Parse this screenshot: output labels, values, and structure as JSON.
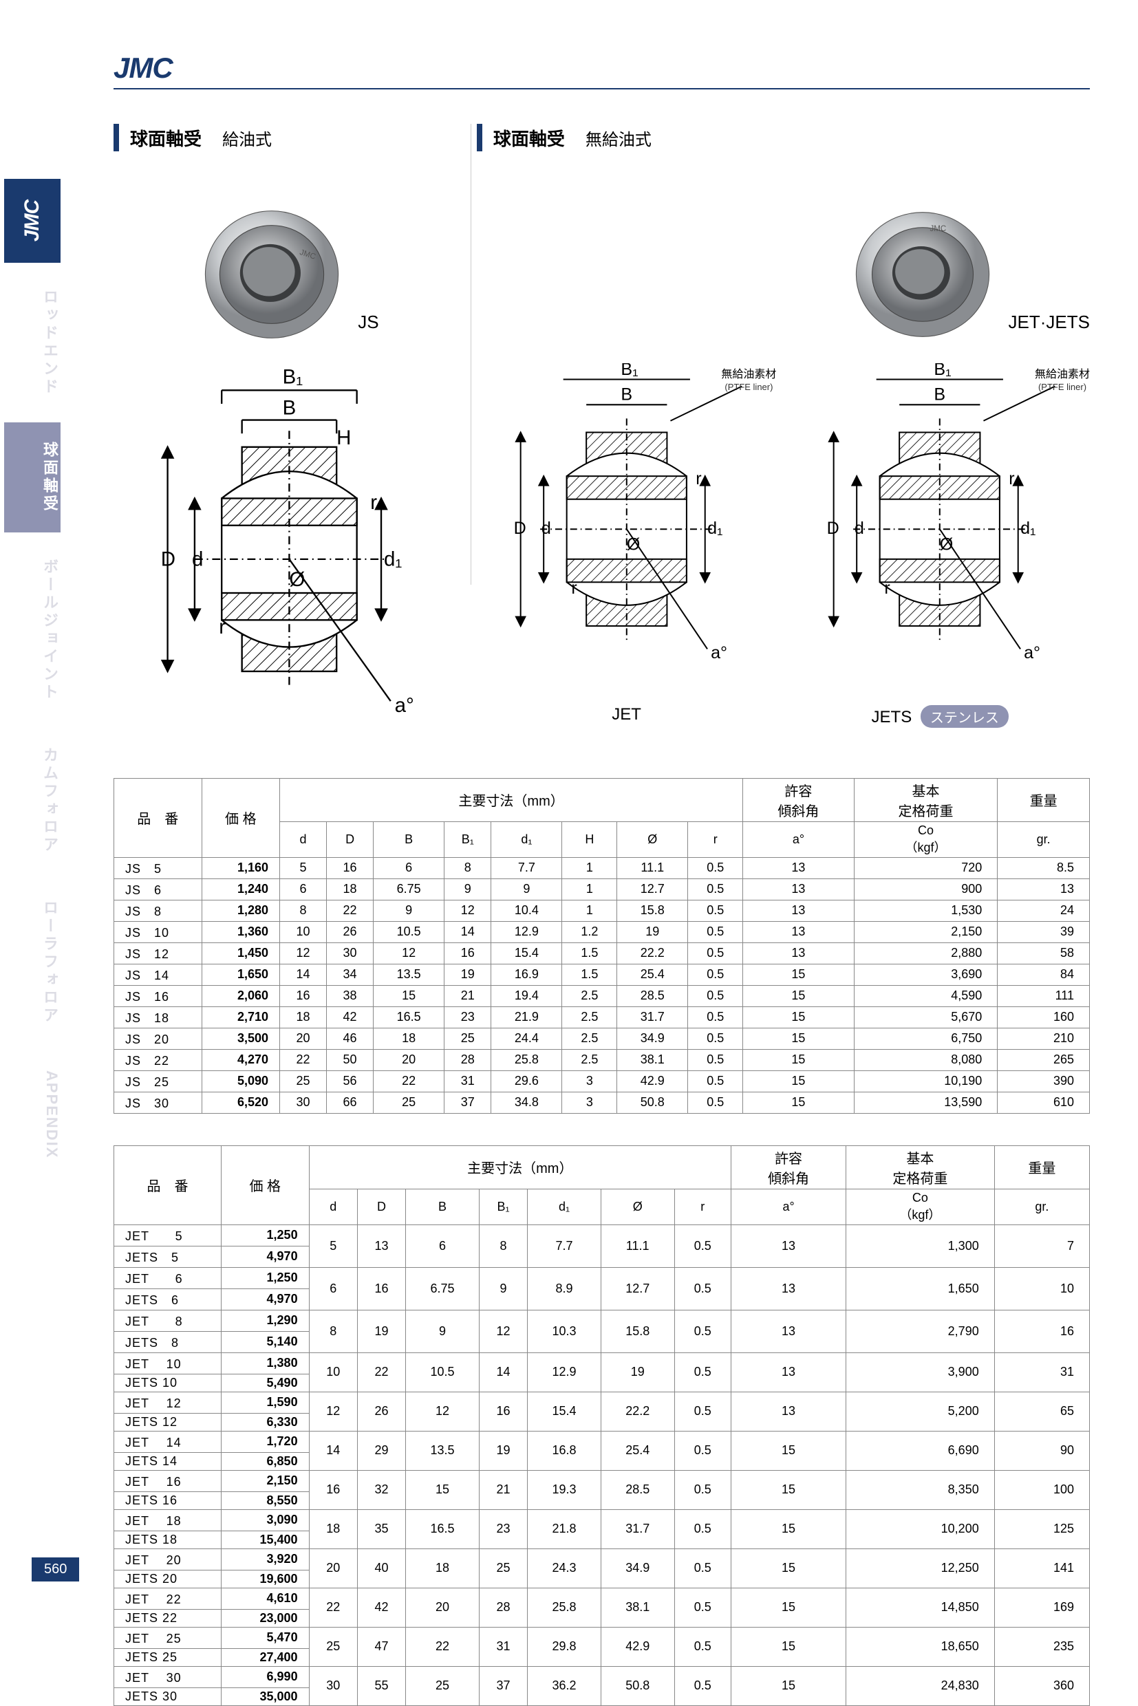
{
  "brand": "JMC",
  "page_number": "560",
  "sidebar": {
    "tabs": [
      {
        "label": "JMC",
        "key": "jmc",
        "active": false
      },
      {
        "label": "ロッドエンド",
        "key": "rod-end",
        "active": false
      },
      {
        "label": "球面軸受",
        "key": "spherical",
        "active": true
      },
      {
        "label": "ボールジョイント",
        "key": "ball-joint",
        "active": false
      },
      {
        "label": "カムフォロア",
        "key": "cam-follower",
        "active": false
      },
      {
        "label": "ローラフォロア",
        "key": "roller-follower",
        "active": false
      },
      {
        "label": "APPENDIX",
        "key": "appendix",
        "active": false
      }
    ]
  },
  "sections": {
    "left": {
      "title": "球面軸受",
      "subtitle": "給油式",
      "product": "JS"
    },
    "right": {
      "title": "球面軸受",
      "subtitle": "無給油式",
      "product": "JET·JETS"
    }
  },
  "diagrams": {
    "js_label": "",
    "jet_label": "JET",
    "jets_label": "JETS",
    "stainless": "ステンレス",
    "liner_jp": "無給油素材",
    "liner_en": "(PTFE liner)",
    "dims": {
      "B": "B",
      "B1": "B₁",
      "H": "H",
      "D": "D",
      "d": "d",
      "d1": "d₁",
      "r": "r",
      "phi": "Ø",
      "a": "a°"
    }
  },
  "table_headers": {
    "part": "品　番",
    "price": "価 格",
    "dims_title": "主要寸法（mm）",
    "d": "d",
    "D_": "D",
    "B": "B",
    "B1": "B₁",
    "d1": "d₁",
    "H": "H",
    "phi": "Ø",
    "r": "r",
    "tilt": "許容\n傾斜角",
    "tilt_unit": "a°",
    "load": "基本\n定格荷重",
    "load_unit": "Co\n（kgf）",
    "weight": "重量",
    "weight_unit": "gr."
  },
  "js_table": [
    {
      "n": "JS　5",
      "p": "1,160",
      "d": 5,
      "D": 16,
      "B": 6,
      "B1": 8,
      "d1": 7.7,
      "H": 1.0,
      "phi": 11.1,
      "r": 0.5,
      "a": 13,
      "co": "720",
      "g": 8.5
    },
    {
      "n": "JS　6",
      "p": "1,240",
      "d": 6,
      "D": 18,
      "B": 6.75,
      "B1": 9,
      "d1": 9,
      "H": 1.0,
      "phi": 12.7,
      "r": 0.5,
      "a": 13,
      "co": "900",
      "g": 13
    },
    {
      "n": "JS　8",
      "p": "1,280",
      "d": 8,
      "D": 22,
      "B": 9,
      "B1": 12,
      "d1": 10.4,
      "H": 1.0,
      "phi": 15.8,
      "r": 0.5,
      "a": 13,
      "co": "1,530",
      "g": 24
    },
    {
      "n": "JS　10",
      "p": "1,360",
      "d": 10,
      "D": 26,
      "B": 10.5,
      "B1": 14,
      "d1": 12.9,
      "H": 1.2,
      "phi": 19.0,
      "r": 0.5,
      "a": 13,
      "co": "2,150",
      "g": 39
    },
    {
      "n": "JS　12",
      "p": "1,450",
      "d": 12,
      "D": 30,
      "B": 12,
      "B1": 16,
      "d1": 15.4,
      "H": 1.5,
      "phi": 22.2,
      "r": 0.5,
      "a": 13,
      "co": "2,880",
      "g": 58
    },
    {
      "n": "JS　14",
      "p": "1,650",
      "d": 14,
      "D": 34,
      "B": 13.5,
      "B1": 19,
      "d1": 16.9,
      "H": 1.5,
      "phi": 25.4,
      "r": 0.5,
      "a": 15,
      "co": "3,690",
      "g": 84
    },
    {
      "n": "JS　16",
      "p": "2,060",
      "d": 16,
      "D": 38,
      "B": 15,
      "B1": 21,
      "d1": 19.4,
      "H": 2.5,
      "phi": 28.5,
      "r": 0.5,
      "a": 15,
      "co": "4,590",
      "g": 111
    },
    {
      "n": "JS　18",
      "p": "2,710",
      "d": 18,
      "D": 42,
      "B": 16.5,
      "B1": 23,
      "d1": 21.9,
      "H": 2.5,
      "phi": 31.7,
      "r": 0.5,
      "a": 15,
      "co": "5,670",
      "g": 160
    },
    {
      "n": "JS　20",
      "p": "3,500",
      "d": 20,
      "D": 46,
      "B": 18,
      "B1": 25,
      "d1": 24.4,
      "H": 2.5,
      "phi": 34.9,
      "r": 0.5,
      "a": 15,
      "co": "6,750",
      "g": 210
    },
    {
      "n": "JS　22",
      "p": "4,270",
      "d": 22,
      "D": 50,
      "B": 20,
      "B1": 28,
      "d1": 25.8,
      "H": 2.5,
      "phi": 38.1,
      "r": 0.5,
      "a": 15,
      "co": "8,080",
      "g": 265
    },
    {
      "n": "JS　25",
      "p": "5,090",
      "d": 25,
      "D": 56,
      "B": 22,
      "B1": 31,
      "d1": 29.6,
      "H": 3,
      "phi": 42.9,
      "r": 0.5,
      "a": 15,
      "co": "10,190",
      "g": 390
    },
    {
      "n": "JS　30",
      "p": "6,520",
      "d": 30,
      "D": 66,
      "B": 25,
      "B1": 37,
      "d1": 34.8,
      "H": 3,
      "phi": 50.8,
      "r": 0.5,
      "a": 15,
      "co": "13,590",
      "g": 610
    }
  ],
  "jet_table": [
    {
      "n1": "JET　　5",
      "p1": "1,250",
      "n2": "JETS　5",
      "p2": "4,970",
      "d": 5,
      "D": 13,
      "B": 6,
      "B1": 8,
      "d1": 7.7,
      "phi": 11.1,
      "r": 0.5,
      "a": 13,
      "co": "1,300",
      "g": 7
    },
    {
      "n1": "JET　　6",
      "p1": "1,250",
      "n2": "JETS　6",
      "p2": "4,970",
      "d": 6,
      "D": 16,
      "B": 6.75,
      "B1": 9,
      "d1": 8.9,
      "phi": 12.7,
      "r": 0.5,
      "a": 13,
      "co": "1,650",
      "g": 10
    },
    {
      "n1": "JET　　8",
      "p1": "1,290",
      "n2": "JETS　8",
      "p2": "5,140",
      "d": 8,
      "D": 19,
      "B": 9,
      "B1": 12,
      "d1": 10.3,
      "phi": 15.8,
      "r": 0.5,
      "a": 13,
      "co": "2,790",
      "g": 16
    },
    {
      "n1": "JET　 10",
      "p1": "1,380",
      "n2": "JETS 10",
      "p2": "5,490",
      "d": 10,
      "D": 22,
      "B": 10.5,
      "B1": 14,
      "d1": 12.9,
      "phi": 19.0,
      "r": 0.5,
      "a": 13,
      "co": "3,900",
      "g": 31
    },
    {
      "n1": "JET　 12",
      "p1": "1,590",
      "n2": "JETS 12",
      "p2": "6,330",
      "d": 12,
      "D": 26,
      "B": 12,
      "B1": 16,
      "d1": 15.4,
      "phi": 22.2,
      "r": 0.5,
      "a": 13,
      "co": "5,200",
      "g": 65
    },
    {
      "n1": "JET　 14",
      "p1": "1,720",
      "n2": "JETS 14",
      "p2": "6,850",
      "d": 14,
      "D": 29,
      "B": 13.5,
      "B1": 19,
      "d1": 16.8,
      "phi": 25.4,
      "r": 0.5,
      "a": 15,
      "co": "6,690",
      "g": 90
    },
    {
      "n1": "JET　 16",
      "p1": "2,150",
      "n2": "JETS 16",
      "p2": "8,550",
      "d": 16,
      "D": 32,
      "B": 15,
      "B1": 21,
      "d1": 19.3,
      "phi": 28.5,
      "r": 0.5,
      "a": 15,
      "co": "8,350",
      "g": 100
    },
    {
      "n1": "JET　 18",
      "p1": "3,090",
      "n2": "JETS 18",
      "p2": "15,400",
      "d": 18,
      "D": 35,
      "B": 16.5,
      "B1": 23,
      "d1": 21.8,
      "phi": 31.7,
      "r": 0.5,
      "a": 15,
      "co": "10,200",
      "g": 125
    },
    {
      "n1": "JET　 20",
      "p1": "3,920",
      "n2": "JETS 20",
      "p2": "19,600",
      "d": 20,
      "D": 40,
      "B": 18,
      "B1": 25,
      "d1": 24.3,
      "phi": 34.9,
      "r": 0.5,
      "a": 15,
      "co": "12,250",
      "g": 141
    },
    {
      "n1": "JET　 22",
      "p1": "4,610",
      "n2": "JETS 22",
      "p2": "23,000",
      "d": 22,
      "D": 42,
      "B": 20,
      "B1": 28,
      "d1": 25.8,
      "phi": 38.1,
      "r": 0.5,
      "a": 15,
      "co": "14,850",
      "g": 169
    },
    {
      "n1": "JET　 25",
      "p1": "5,470",
      "n2": "JETS 25",
      "p2": "27,400",
      "d": 25,
      "D": 47,
      "B": 22,
      "B1": 31,
      "d1": 29.8,
      "phi": 42.9,
      "r": 0.5,
      "a": 15,
      "co": "18,650",
      "g": 235
    },
    {
      "n1": "JET　 30",
      "p1": "6,990",
      "n2": "JETS 30",
      "p2": "35,000",
      "d": 30,
      "D": 55,
      "B": 25,
      "B1": 37,
      "d1": 36.2,
      "phi": 50.8,
      "r": 0.5,
      "a": 15,
      "co": "24,830",
      "g": 360
    }
  ],
  "colors": {
    "brand": "#1a3a6e",
    "tab_active": "#8f93b2",
    "tab_inactive": "#dcdce4",
    "border": "#888"
  }
}
